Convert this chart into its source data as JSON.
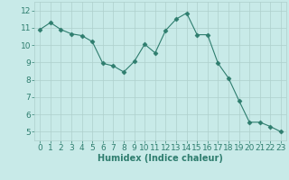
{
  "x": [
    0,
    1,
    2,
    3,
    4,
    5,
    6,
    7,
    8,
    9,
    10,
    11,
    12,
    13,
    14,
    15,
    16,
    17,
    18,
    19,
    20,
    21,
    22,
    23
  ],
  "y": [
    10.9,
    11.3,
    10.9,
    10.65,
    10.55,
    10.2,
    8.95,
    8.8,
    8.45,
    9.05,
    10.05,
    9.55,
    10.85,
    11.5,
    11.85,
    10.6,
    10.6,
    8.95,
    8.1,
    6.8,
    5.55,
    5.55,
    5.3,
    5.0
  ],
  "line_color": "#2e7d6e",
  "marker": "D",
  "marker_size": 2.5,
  "bg_color": "#c8eae8",
  "grid_color": "#aecfcc",
  "xlabel": "Humidex (Indice chaleur)",
  "xlim": [
    -0.5,
    23.5
  ],
  "ylim": [
    4.5,
    12.5
  ],
  "yticks": [
    5,
    6,
    7,
    8,
    9,
    10,
    11,
    12
  ],
  "xticks": [
    0,
    1,
    2,
    3,
    4,
    5,
    6,
    7,
    8,
    9,
    10,
    11,
    12,
    13,
    14,
    15,
    16,
    17,
    18,
    19,
    20,
    21,
    22,
    23
  ],
  "tick_color": "#2e7d6e",
  "label_color": "#2e7d6e",
  "label_fontsize": 7,
  "tick_fontsize": 6.5
}
